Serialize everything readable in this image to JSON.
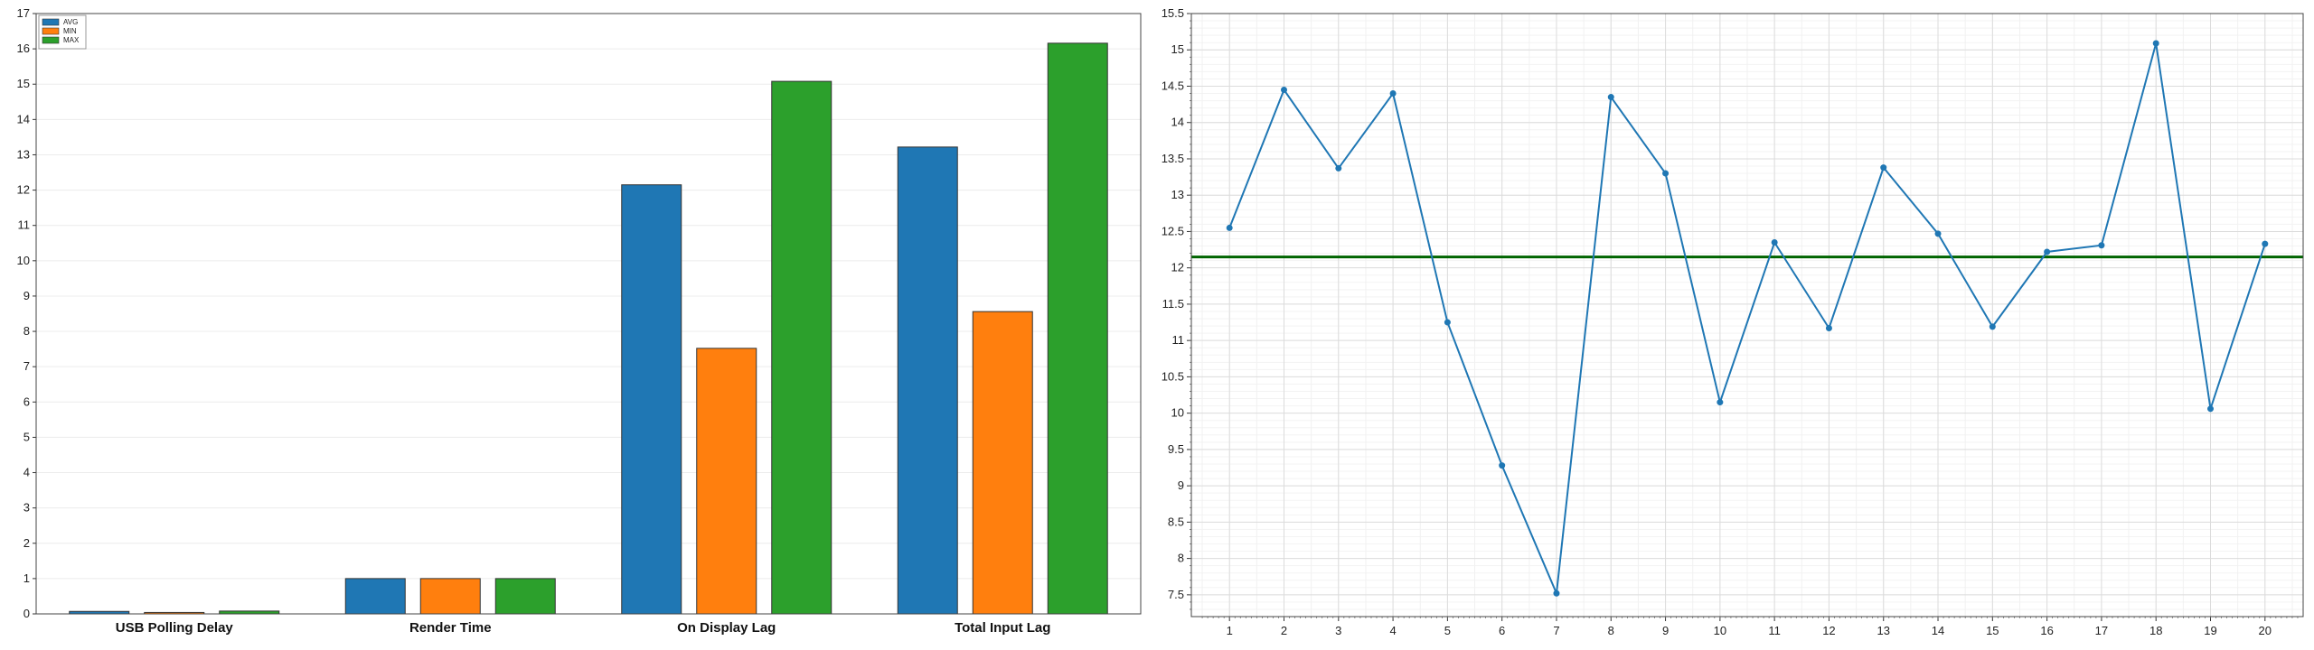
{
  "chart_data": [
    {
      "type": "bar",
      "categories": [
        "USB Polling Delay",
        "Render Time",
        "On Display Lag",
        "Total Input Lag"
      ],
      "series": [
        {
          "name": "AVG",
          "color": "#1f77b4",
          "values": [
            0.07,
            1.0,
            12.15,
            13.22
          ]
        },
        {
          "name": "MIN",
          "color": "#ff7f0e",
          "values": [
            0.04,
            1.0,
            7.52,
            8.56
          ]
        },
        {
          "name": "MAX",
          "color": "#2ca02c",
          "values": [
            0.08,
            1.0,
            15.08,
            16.16
          ]
        }
      ],
      "ylim": [
        0,
        17
      ],
      "yticks": [
        "0",
        "1",
        "2",
        "3",
        "4",
        "5",
        "6",
        "7",
        "8",
        "9",
        "10",
        "11",
        "12",
        "13",
        "14",
        "15",
        "16",
        "17"
      ],
      "legend": "top-left",
      "grid": "horizontal"
    },
    {
      "type": "line",
      "x": [
        1,
        2,
        3,
        4,
        5,
        6,
        7,
        8,
        9,
        10,
        11,
        12,
        13,
        14,
        15,
        16,
        17,
        18,
        19,
        20
      ],
      "xticks": [
        "1",
        "2",
        "3",
        "4",
        "5",
        "6",
        "7",
        "8",
        "9",
        "10",
        "11",
        "12",
        "13",
        "14",
        "15",
        "16",
        "17",
        "18",
        "19",
        "20"
      ],
      "series": [
        {
          "color": "#1f77b4",
          "values": [
            12.55,
            14.45,
            13.37,
            14.4,
            11.25,
            9.28,
            7.52,
            14.35,
            13.3,
            10.15,
            12.35,
            11.17,
            13.38,
            12.47,
            11.19,
            12.22,
            12.31,
            15.09,
            10.06,
            12.33
          ]
        }
      ],
      "hline": {
        "value": 12.15,
        "color": "#006400"
      },
      "ylim": [
        7.2,
        15.5
      ],
      "yticks": [
        "7.5",
        "8",
        "8.5",
        "9",
        "9.5",
        "10",
        "10.5",
        "11",
        "11.5",
        "12",
        "12.5",
        "13",
        "13.5",
        "14",
        "14.5",
        "15",
        "15.5"
      ],
      "grid": "both"
    }
  ]
}
